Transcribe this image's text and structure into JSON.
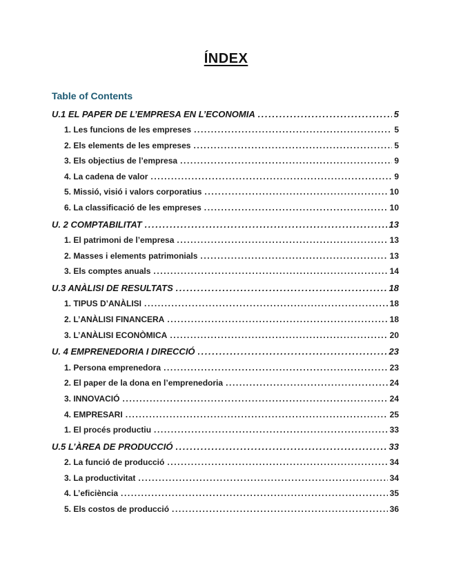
{
  "document": {
    "title": "ÍNDEX",
    "toc_heading": "Table of Contents",
    "accent_color": "#1d5a73",
    "text_color": "#1b1b1b",
    "background_color": "#ffffff",
    "entries": [
      {
        "level": 1,
        "label": "U.1 EL PAPER DE L’EMPRESA EN L’ECONOMIA",
        "page": "5"
      },
      {
        "level": 2,
        "label": "1. Les funcions de les empreses",
        "page": "5"
      },
      {
        "level": 2,
        "label": "2. Els elements de les empreses",
        "page": "5"
      },
      {
        "level": 2,
        "label": "3. Els objectius de l’empresa",
        "page": "9"
      },
      {
        "level": 2,
        "label": "4. La cadena de valor",
        "page": "9"
      },
      {
        "level": 2,
        "label": "5. Missió, visió i valors corporatius",
        "page": "10"
      },
      {
        "level": 2,
        "label": "6. La classificació de les empreses",
        "page": "10"
      },
      {
        "level": 1,
        "label": "U. 2 COMPTABILITAT",
        "page": "13"
      },
      {
        "level": 2,
        "label": "1. El patrimoni de l’empresa",
        "page": "13"
      },
      {
        "level": 2,
        "label": "2. Masses i elements patrimonials",
        "page": "13"
      },
      {
        "level": 2,
        "label": "3. Els comptes anuals",
        "page": "14"
      },
      {
        "level": 1,
        "label": "U.3 ANÀLISI DE RESULTATS",
        "page": "18"
      },
      {
        "level": 2,
        "label": "1. TIPUS D’ANÀLISI",
        "page": "18"
      },
      {
        "level": 2,
        "label": "2. L’ANÀLISI FINANCERA",
        "page": "18"
      },
      {
        "level": 2,
        "label": "3. L’ANÀLISI ECONÒMICA",
        "page": "20"
      },
      {
        "level": 1,
        "label": "U. 4 EMPRENEDORIA I DIRECCIÓ",
        "page": "23"
      },
      {
        "level": 2,
        "label": "1. Persona emprenedora",
        "page": "23"
      },
      {
        "level": 2,
        "label": "2. El paper de la dona en l’emprenedoria",
        "page": "24"
      },
      {
        "level": 2,
        "label": "3. INNOVACIÓ",
        "page": "24"
      },
      {
        "level": 2,
        "label": "4. EMPRESARI",
        "page": "25"
      },
      {
        "level": 2,
        "label": "1. El procés productiu",
        "page": "33"
      },
      {
        "level": 1,
        "label": "U.5 L’ÀREA DE PRODUCCIÓ",
        "page": "33"
      },
      {
        "level": 2,
        "label": "2. La funció de producció",
        "page": "34"
      },
      {
        "level": 2,
        "label": "3. La productivitat",
        "page": "34"
      },
      {
        "level": 2,
        "label": "4. L’eficiència",
        "page": "35"
      },
      {
        "level": 2,
        "label": "5. Els costos de producció",
        "page": "36"
      }
    ]
  }
}
